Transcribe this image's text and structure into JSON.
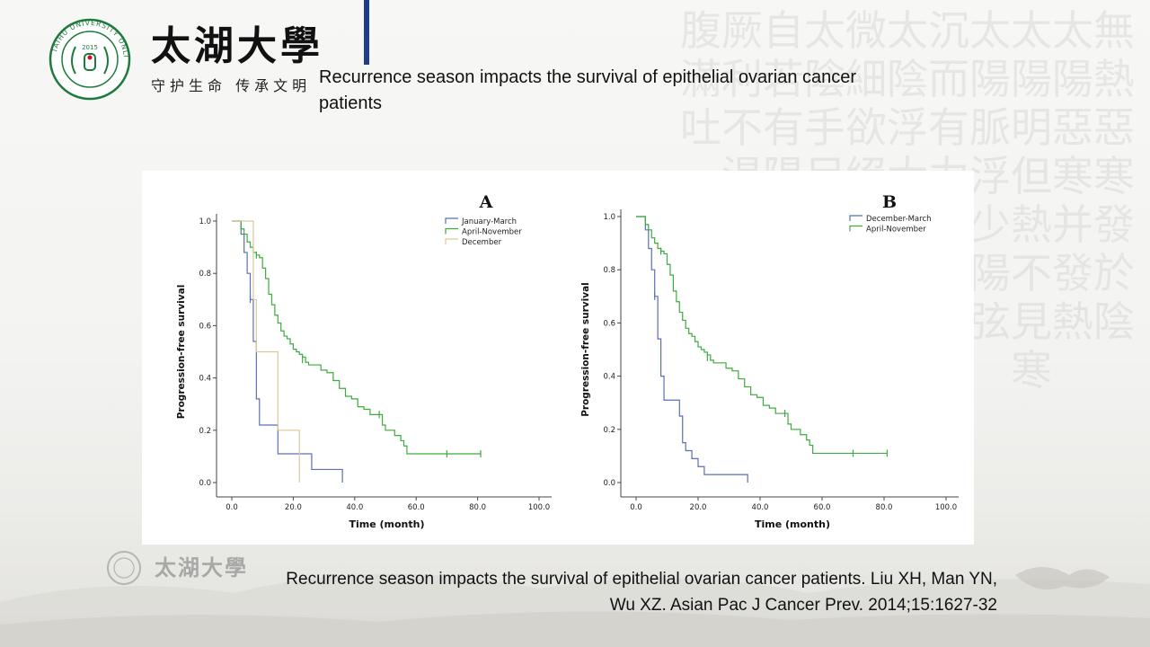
{
  "header": {
    "university_name": "太湖大學",
    "slogan": "守护生命 传承文明",
    "seal": {
      "ring_text": "TAIHU UNIVERSITY ONLINE",
      "year": "2015"
    },
    "background_calligraphy": [
      "無熱惡寒發於陰",
      "太陽惡寒并發熱",
      "太陽明但熱不見寒",
      "太陽脈浮少陽弦",
      "沉而有力",
      "太陰浮大",
      "微細欲絕",
      "太陰手足",
      "自若有陽",
      "厥利不渴",
      "腹滿吐"
    ],
    "colors": {
      "accent_bar": "#1f3e8a",
      "text": "#111111"
    }
  },
  "slide": {
    "title": "Recurrence season impacts the survival of epithelial ovarian cancer patients",
    "caption_line1": "Recurrence season impacts the survival of epithelial ovarian cancer patients. Liu XH, Man YN,",
    "caption_line2": "Wu XZ. Asian Pac J Cancer Prev. 2014;15:1627-32"
  },
  "chart_data": [
    {
      "type": "line",
      "subtype": "kaplan-meier-step",
      "title": "A",
      "xlabel": "Time (month)",
      "ylabel": "Progression-free survival",
      "xlim": [
        0,
        100
      ],
      "ylim": [
        0,
        1
      ],
      "xticks": [
        "0.0",
        "20.0",
        "40.0",
        "60.0",
        "80.0",
        "100.0"
      ],
      "yticks": [
        "0.0",
        "0.2",
        "0.4",
        "0.6",
        "0.8",
        "1.0"
      ],
      "legend_position": "top-right",
      "series": [
        {
          "name": "January-March",
          "color": "#5a6fb5",
          "x": [
            0,
            2,
            3,
            4,
            5,
            6,
            7,
            8,
            9,
            13,
            15,
            22,
            26,
            36
          ],
          "y": [
            1.0,
            1.0,
            0.95,
            0.88,
            0.8,
            0.7,
            0.54,
            0.32,
            0.22,
            0.22,
            0.11,
            0.11,
            0.05,
            0.05
          ],
          "end": [
            36,
            0.0
          ],
          "censor": [
            [
              6,
              0.7
            ]
          ]
        },
        {
          "name": "April-November",
          "color": "#3faa3f",
          "x": [
            0,
            2,
            3,
            4,
            5,
            6,
            7,
            8,
            9,
            10,
            11,
            12,
            13,
            14,
            15,
            16,
            17,
            18,
            19,
            20,
            21,
            22,
            23,
            24,
            25,
            27,
            29,
            31,
            33,
            35,
            37,
            39,
            41,
            43,
            45,
            49,
            50,
            53,
            55,
            56,
            57,
            70,
            81
          ],
          "y": [
            1.0,
            1.0,
            0.97,
            0.95,
            0.92,
            0.9,
            0.88,
            0.87,
            0.86,
            0.82,
            0.78,
            0.72,
            0.68,
            0.64,
            0.61,
            0.58,
            0.56,
            0.55,
            0.53,
            0.51,
            0.5,
            0.49,
            0.48,
            0.46,
            0.45,
            0.45,
            0.43,
            0.42,
            0.39,
            0.36,
            0.33,
            0.32,
            0.29,
            0.28,
            0.26,
            0.22,
            0.2,
            0.18,
            0.16,
            0.14,
            0.11,
            0.11,
            0.11
          ],
          "censor": [
            [
              8,
              0.87
            ],
            [
              23,
              0.47
            ],
            [
              48,
              0.26
            ],
            [
              70,
              0.11
            ],
            [
              81,
              0.11
            ]
          ]
        },
        {
          "name": "December",
          "color": "#d8c99a",
          "x": [
            0,
            6,
            7,
            8,
            15,
            20,
            22
          ],
          "y": [
            1.0,
            1.0,
            0.7,
            0.5,
            0.2,
            0.2,
            0.05
          ],
          "end": [
            22,
            0.0
          ],
          "censor": []
        }
      ]
    },
    {
      "type": "line",
      "subtype": "kaplan-meier-step",
      "title": "B",
      "xlabel": "Time (month)",
      "ylabel": "Progression-free survival",
      "xlim": [
        0,
        100
      ],
      "ylim": [
        0,
        1
      ],
      "xticks": [
        "0.0",
        "20.0",
        "40.0",
        "60.0",
        "80.0",
        "100.0"
      ],
      "yticks": [
        "0.0",
        "0.2",
        "0.4",
        "0.6",
        "0.8",
        "1.0"
      ],
      "legend_position": "top-right",
      "series": [
        {
          "name": "December-March",
          "color": "#5a6fb5",
          "x": [
            0,
            2,
            3,
            4,
            5,
            6,
            7,
            8,
            9,
            13,
            14,
            15,
            16,
            18,
            20,
            22,
            26,
            36
          ],
          "y": [
            1.0,
            1.0,
            0.95,
            0.88,
            0.8,
            0.7,
            0.54,
            0.4,
            0.31,
            0.31,
            0.25,
            0.15,
            0.12,
            0.09,
            0.06,
            0.03,
            0.03,
            0.03
          ],
          "end": [
            36,
            0.0
          ],
          "censor": [
            [
              6,
              0.7
            ]
          ]
        },
        {
          "name": "April-November",
          "color": "#3faa3f",
          "x": [
            0,
            2,
            3,
            4,
            5,
            6,
            7,
            8,
            9,
            10,
            11,
            12,
            13,
            14,
            15,
            16,
            17,
            18,
            19,
            20,
            21,
            22,
            23,
            24,
            25,
            27,
            29,
            31,
            33,
            35,
            37,
            39,
            41,
            43,
            45,
            49,
            50,
            53,
            55,
            56,
            57,
            70,
            81
          ],
          "y": [
            1.0,
            1.0,
            0.97,
            0.95,
            0.92,
            0.9,
            0.88,
            0.87,
            0.86,
            0.82,
            0.78,
            0.72,
            0.68,
            0.64,
            0.61,
            0.58,
            0.56,
            0.55,
            0.53,
            0.51,
            0.5,
            0.49,
            0.48,
            0.46,
            0.45,
            0.45,
            0.43,
            0.42,
            0.39,
            0.36,
            0.33,
            0.32,
            0.29,
            0.28,
            0.26,
            0.22,
            0.2,
            0.18,
            0.16,
            0.14,
            0.11,
            0.11,
            0.11
          ],
          "censor": [
            [
              8,
              0.87
            ],
            [
              23,
              0.47
            ],
            [
              48,
              0.26
            ],
            [
              70,
              0.11
            ],
            [
              81,
              0.11
            ]
          ]
        }
      ]
    }
  ]
}
